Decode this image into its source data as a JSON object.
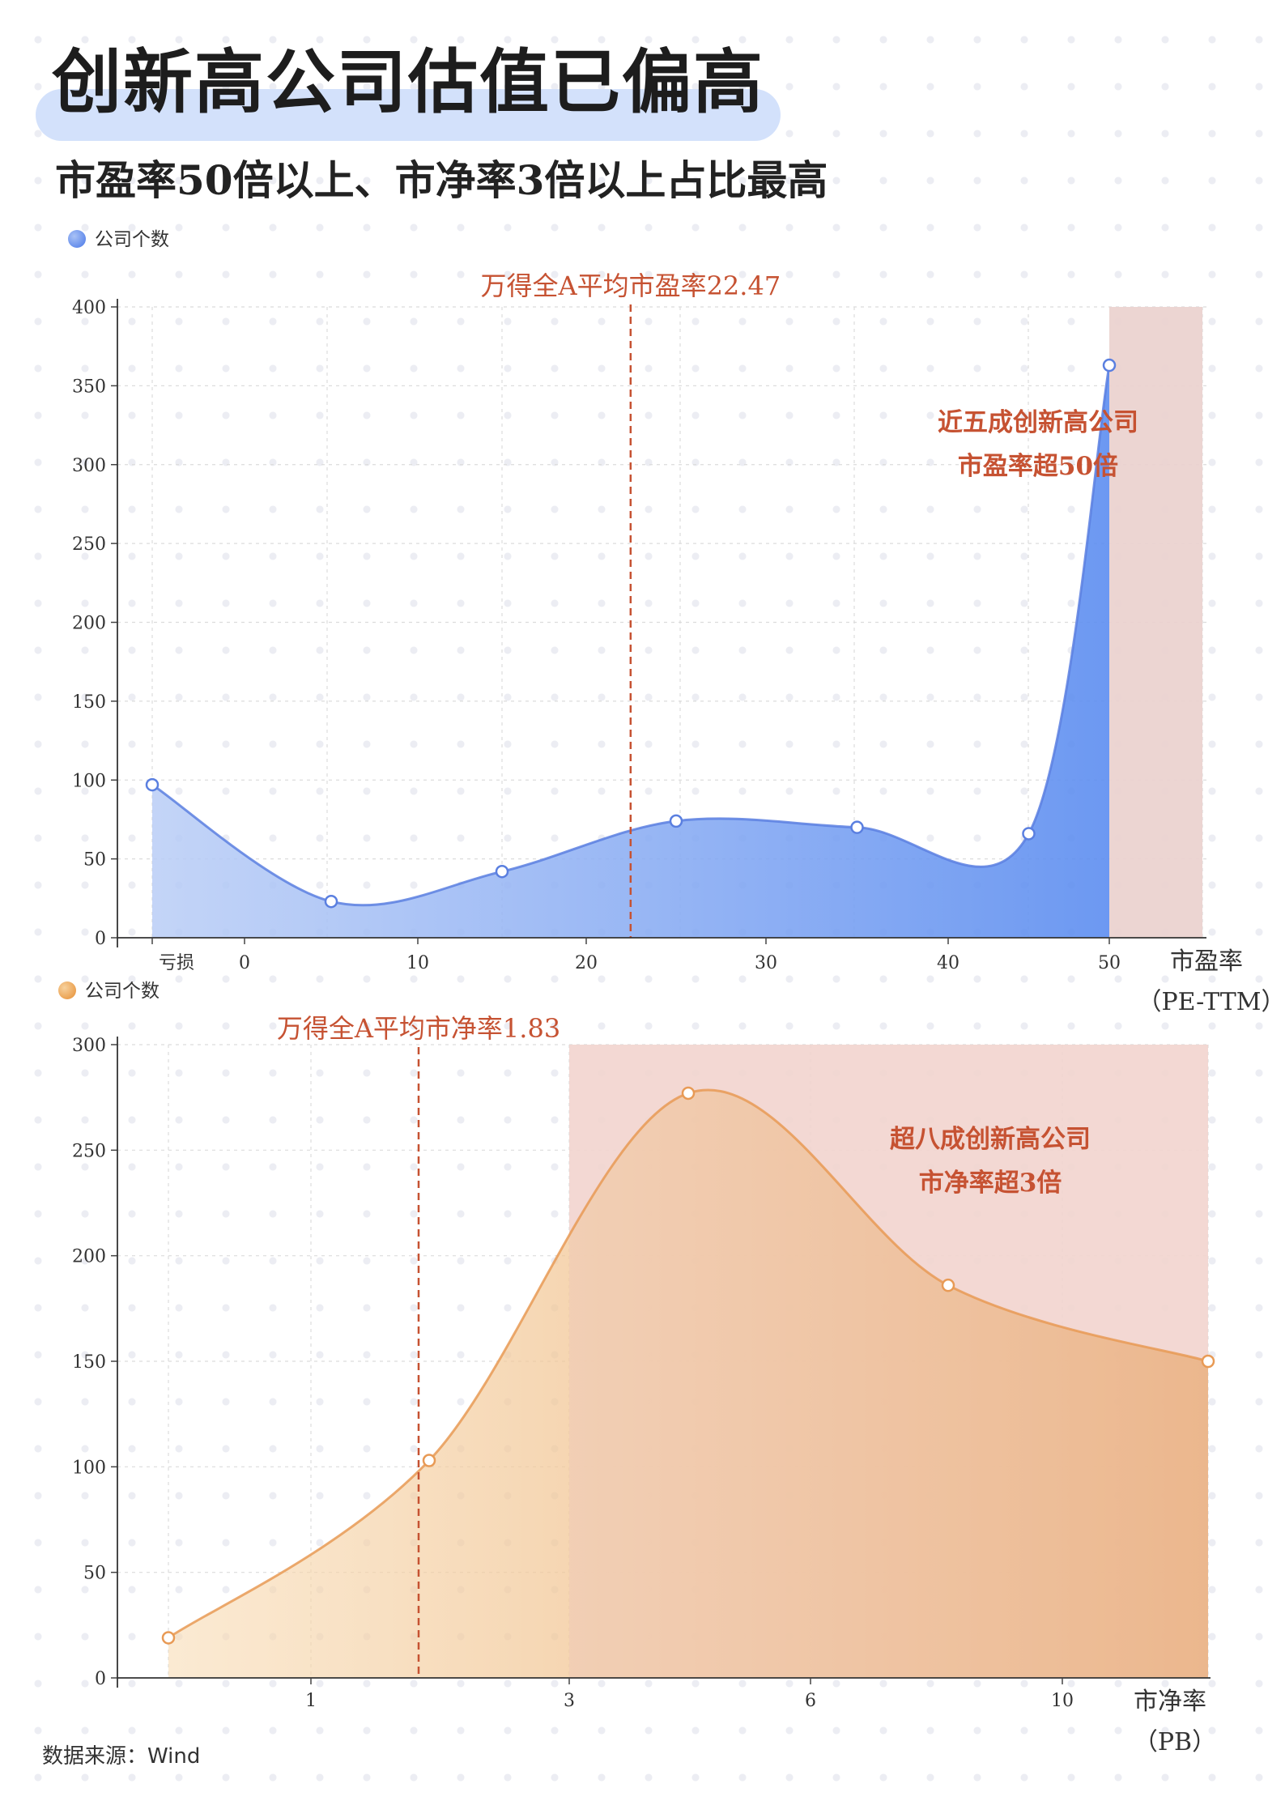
{
  "title": "创新高公司估值已偏高",
  "subtitle": "市盈率50倍以上、市净率3倍以上占比最高",
  "source": "数据来源：Wind",
  "colors": {
    "pe": "#6f98ee",
    "pe_dark": "#5a7fe0",
    "pb": "#efb76f",
    "pb_dark": "#e89a55",
    "highlight": "#f2d5cf",
    "ref_line": "#c65232"
  },
  "chart_data": [
    {
      "type": "area",
      "legend": "公司个数",
      "x_labels": [
        "亏损",
        "0",
        "10",
        "20",
        "30",
        "40",
        "50"
      ],
      "xlabel": "市盈率",
      "xlabel_unit": "（PE-TTM）",
      "ylim": [
        0,
        400
      ],
      "yticks": [
        "0",
        "50",
        "100",
        "150",
        "200",
        "250",
        "300",
        "350",
        "400"
      ],
      "points": [
        {
          "x": "亏损",
          "y": 97
        },
        {
          "x": 5,
          "y": 23
        },
        {
          "x": 15,
          "y": 42
        },
        {
          "x": 25,
          "y": 74
        },
        {
          "x": 35,
          "y": 70
        },
        {
          "x": 45,
          "y": 66
        },
        {
          "x": 50,
          "y": 363
        }
      ],
      "reference_line": {
        "x": 22.47,
        "label": "万得全A平均市盈率22.47"
      },
      "highlight_region": {
        "x_from": 50,
        "label_lines": [
          "近五成创新高公司",
          "市盈率超50倍"
        ]
      }
    },
    {
      "type": "area",
      "legend": "公司个数",
      "x_labels": [
        "1",
        "3",
        "6",
        "10"
      ],
      "xlabel": "市净率",
      "xlabel_unit": "（PB）",
      "ylim": [
        0,
        300
      ],
      "yticks": [
        "0",
        "50",
        "100",
        "150",
        "200",
        "250",
        "300"
      ],
      "points": [
        {
          "x": 0.5,
          "y": 19
        },
        {
          "x": 2,
          "y": 103
        },
        {
          "x": 4.5,
          "y": 277
        },
        {
          "x": 8,
          "y": 186
        },
        {
          "x": 12,
          "y": 150
        }
      ],
      "reference_line": {
        "x": 1.83,
        "label": "万得全A平均市净率1.83"
      },
      "highlight_region": {
        "x_from": 3,
        "label_lines": [
          "超八成创新高公司",
          "市净率超3倍"
        ]
      }
    }
  ]
}
